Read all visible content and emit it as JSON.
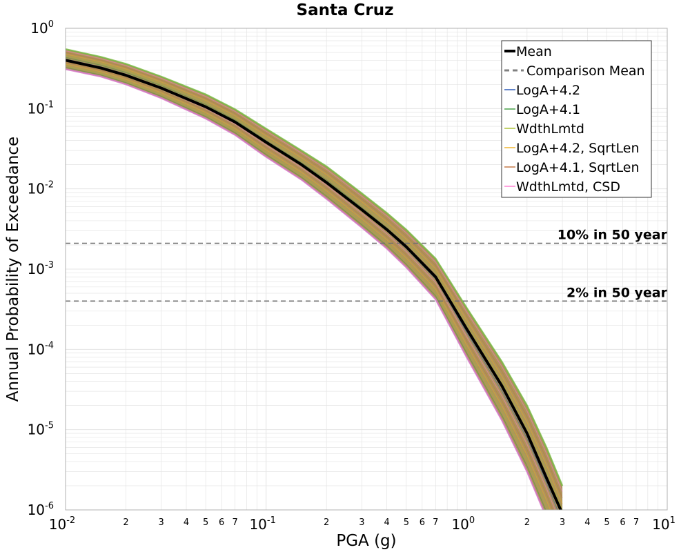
{
  "chart_data": {
    "type": "line",
    "title": "Santa Cruz",
    "xlabel": "PGA (g)",
    "ylabel": "Annual Probability of Exceedance",
    "x_scale": "log",
    "y_scale": "log",
    "xlim": [
      0.01,
      10
    ],
    "ylim": [
      1e-06,
      1
    ],
    "grid": true,
    "x_ticks": [
      {
        "label": "10",
        "exp": "-2"
      },
      {
        "label": "10",
        "exp": "-1"
      },
      {
        "label": "10",
        "exp": "0"
      },
      {
        "label": "10",
        "exp": "1"
      }
    ],
    "y_ticks": [
      {
        "label": "10",
        "exp": "0"
      },
      {
        "label": "10",
        "exp": "-1"
      },
      {
        "label": "10",
        "exp": "-2"
      },
      {
        "label": "10",
        "exp": "-3"
      },
      {
        "label": "10",
        "exp": "-4"
      },
      {
        "label": "10",
        "exp": "-5"
      },
      {
        "label": "10",
        "exp": "-6"
      }
    ],
    "x_minor_tick_labels": [
      "2",
      "3",
      "4",
      "5",
      "6",
      "7"
    ],
    "mean": {
      "name": "Mean",
      "color": "#000000",
      "x": [
        0.01,
        0.015,
        0.02,
        0.03,
        0.05,
        0.07,
        0.1,
        0.15,
        0.2,
        0.3,
        0.4,
        0.5,
        0.7,
        1.0,
        1.5,
        2.0,
        2.5,
        3.0
      ],
      "y": [
        0.4,
        0.32,
        0.26,
        0.18,
        0.105,
        0.068,
        0.038,
        0.02,
        0.012,
        0.0055,
        0.0031,
        0.0019,
        0.0008,
        0.00018,
        3.5e-05,
        9e-06,
        2.5e-06,
        9e-07
      ]
    },
    "band": {
      "upper_y": [
        0.55,
        0.44,
        0.36,
        0.25,
        0.15,
        0.098,
        0.056,
        0.03,
        0.019,
        0.0088,
        0.005,
        0.0031,
        0.00135,
        0.00033,
        7e-05,
        2e-05,
        6e-06,
        2e-06
      ],
      "lower_y": [
        0.31,
        0.25,
        0.2,
        0.135,
        0.075,
        0.047,
        0.025,
        0.013,
        0.0075,
        0.0033,
        0.0018,
        0.00105,
        0.00042,
        8e-05,
        1.3e-05,
        3e-06,
        8e-07,
        2.5e-07
      ]
    },
    "reference_lines": [
      {
        "label": "10% in 50 year",
        "y": 0.0021
      },
      {
        "label": "2% in 50 year",
        "y": 0.0004
      }
    ],
    "legend": {
      "location": "top-right",
      "entries": [
        {
          "name": "Mean",
          "color": "#000000",
          "style": "thick"
        },
        {
          "name": "Comparison Mean",
          "color": "#808080",
          "style": "dashed"
        },
        {
          "name": "LogA+4.2",
          "color": "#1f4fb4",
          "style": "thin"
        },
        {
          "name": "LogA+4.1",
          "color": "#3a9a3a",
          "style": "thin"
        },
        {
          "name": "WdthLmtd",
          "color": "#a6bf2a",
          "style": "thin"
        },
        {
          "name": "LogA+4.2, SqrtLen",
          "color": "#f0b020",
          "style": "thin"
        },
        {
          "name": "LogA+4.1, SqrtLen",
          "color": "#c0703a",
          "style": "thin"
        },
        {
          "name": "WdthLmtd, CSD",
          "color": "#ff7ad0",
          "style": "thin"
        }
      ]
    },
    "colors": {
      "band_fill": "#a0813f",
      "band_edge_green": "#7fbf3f",
      "band_edge_pink": "#e07ac8",
      "grid": "#e4e4e4",
      "reference": "#707070"
    }
  }
}
